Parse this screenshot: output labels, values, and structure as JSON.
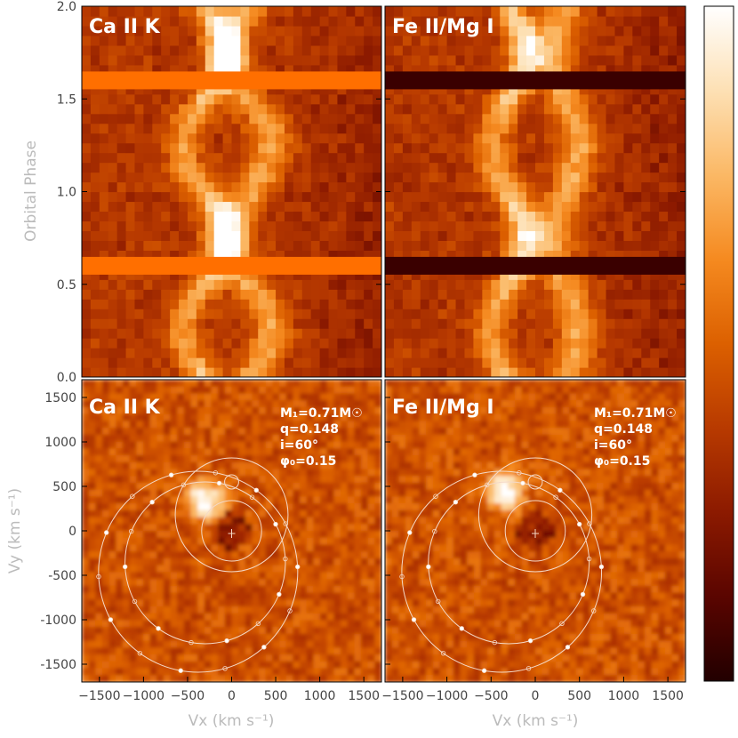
{
  "chart_data": [
    {
      "type": "heatmap",
      "title": "Ca II K",
      "ylabel": "Orbital Phase",
      "ylim": [
        0.0,
        2.0
      ],
      "yticks": [
        "0.0",
        "0.5",
        "1.0",
        "1.5",
        "2.0"
      ],
      "xlim": [
        -1700,
        1700
      ],
      "gap_phases": [
        0.6,
        1.6
      ],
      "gap_color": "#ff6f00",
      "emission_features": [
        {
          "name": "bright spot",
          "velocity_center": -300,
          "amplitude": 250,
          "phase_of_max": 0.75
        },
        {
          "name": "secondary S-wave",
          "velocity_center": 200,
          "amplitude": 250,
          "phase_of_max": 0.25
        }
      ]
    },
    {
      "type": "heatmap",
      "title": "Fe II/Mg I",
      "ylim": [
        0.0,
        2.0
      ],
      "xlim": [
        -1700,
        1700
      ],
      "gap_phases": [
        0.6,
        1.6
      ],
      "gap_color": "#3a0000",
      "emission_features": [
        {
          "name": "bright spot",
          "velocity_center": -300,
          "amplitude": 200,
          "phase_of_max": 0.75
        },
        {
          "name": "secondary S-wave",
          "velocity_center": 350,
          "amplitude": 150,
          "phase_of_max": 0.25
        }
      ]
    },
    {
      "type": "heatmap",
      "title": "Ca II K",
      "xlabel": "Vx (km s⁻¹)",
      "ylabel": "Vy (km s⁻¹)",
      "xlim": [
        -1700,
        1700
      ],
      "ylim": [
        -1700,
        1700
      ],
      "xticks": [
        "-1500",
        "-1000",
        "-500",
        "0",
        "500",
        "1000",
        "1500"
      ],
      "yticks": [
        "-1500",
        "-1000",
        "-500",
        "0",
        "500",
        "1000",
        "1500"
      ],
      "params": [
        "M₁=0.71M☉",
        "q=0.148",
        "i=60°",
        "φ₀=0.15"
      ],
      "bright_spot": {
        "vx": -300,
        "vy": 350
      }
    },
    {
      "type": "heatmap",
      "title": "Fe II/Mg I",
      "xlabel": "Vx (km s⁻¹)",
      "xlim": [
        -1700,
        1700
      ],
      "ylim": [
        -1700,
        1700
      ],
      "xticks": [
        "-1500",
        "-1000",
        "-500",
        "0",
        "500",
        "1000",
        "1500"
      ],
      "params": [
        "M₁=0.71M☉",
        "q=0.148",
        "i=60°",
        "φ₀=0.15"
      ],
      "bright_spot": {
        "vx": -350,
        "vy": 450
      }
    }
  ],
  "overlay": {
    "circles": [
      {
        "cx": 0,
        "cy": 0,
        "r": 340
      },
      {
        "cx": 0,
        "cy": 180,
        "r": 640
      },
      {
        "cx": -300,
        "cy": -360,
        "r": 910
      },
      {
        "cx": -380,
        "cy": -460,
        "r": 1130
      }
    ],
    "small_circle": {
      "cx": 0,
      "cy": 550,
      "r": 80
    },
    "marker": {
      "vx": 0,
      "vy": -30
    }
  },
  "colorbar": {
    "colors": [
      "#220000",
      "#5a0500",
      "#8c1a00",
      "#b83a00",
      "#dc6000",
      "#f58a20",
      "#fbb865",
      "#fde0b4",
      "#ffffff"
    ]
  }
}
